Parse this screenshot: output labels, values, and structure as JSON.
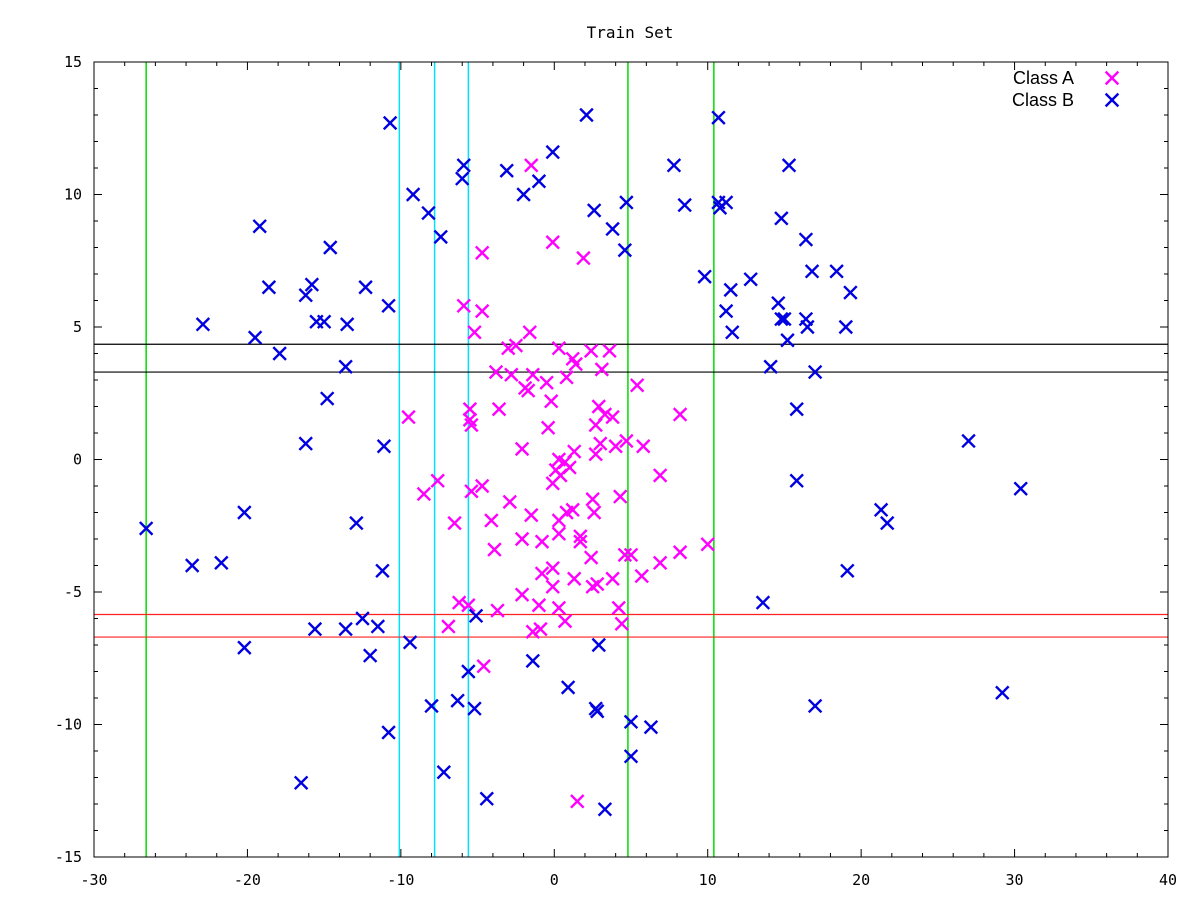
{
  "chart_data": {
    "type": "scatter",
    "title": "Train Set",
    "xlabel": "",
    "ylabel": "",
    "xlim": [
      -30,
      40
    ],
    "ylim": [
      -15,
      15
    ],
    "xticks": [
      -30,
      -20,
      -10,
      0,
      10,
      20,
      30,
      40
    ],
    "yticks": [
      -15,
      -10,
      -5,
      0,
      5,
      10,
      15
    ],
    "grid": false,
    "legend_position": "top-right",
    "series": [
      {
        "name": "Class A",
        "color": "#ff00ff",
        "marker": "x",
        "points": [
          [
            -1.5,
            11.1
          ],
          [
            -0.1,
            8.2
          ],
          [
            1.9,
            7.6
          ],
          [
            -4.7,
            7.8
          ],
          [
            -5.9,
            5.8
          ],
          [
            -4.7,
            5.6
          ],
          [
            -5.2,
            4.8
          ],
          [
            -1.6,
            4.8
          ],
          [
            -3.0,
            4.2
          ],
          [
            -2.5,
            4.3
          ],
          [
            0.3,
            4.2
          ],
          [
            2.4,
            4.1
          ],
          [
            3.6,
            4.1
          ],
          [
            1.2,
            3.8
          ],
          [
            1.4,
            3.6
          ],
          [
            -3.8,
            3.3
          ],
          [
            -2.8,
            3.2
          ],
          [
            -1.4,
            3.2
          ],
          [
            0.8,
            3.1
          ],
          [
            -0.5,
            2.9
          ],
          [
            3.1,
            3.4
          ],
          [
            -1.9,
            2.7
          ],
          [
            -1.7,
            2.6
          ],
          [
            5.4,
            2.8
          ],
          [
            -0.2,
            2.2
          ],
          [
            2.9,
            2.0
          ],
          [
            -3.6,
            1.9
          ],
          [
            -5.5,
            1.9
          ],
          [
            -5.5,
            1.5
          ],
          [
            -5.4,
            1.3
          ],
          [
            -9.5,
            1.6
          ],
          [
            3.3,
            1.7
          ],
          [
            3.8,
            1.6
          ],
          [
            2.7,
            1.3
          ],
          [
            -0.4,
            1.2
          ],
          [
            8.2,
            1.7
          ],
          [
            4.0,
            0.5
          ],
          [
            3.0,
            0.6
          ],
          [
            4.7,
            0.7
          ],
          [
            5.8,
            0.5
          ],
          [
            -2.1,
            0.4
          ],
          [
            1.3,
            0.3
          ],
          [
            2.7,
            0.2
          ],
          [
            0.3,
            0.0
          ],
          [
            0.7,
            -0.1
          ],
          [
            0.1,
            -0.4
          ],
          [
            1.0,
            -0.3
          ],
          [
            0.4,
            -0.6
          ],
          [
            -0.1,
            -0.9
          ],
          [
            6.9,
            -0.6
          ],
          [
            -7.6,
            -0.8
          ],
          [
            -4.7,
            -1.0
          ],
          [
            -5.4,
            -1.2
          ],
          [
            -8.5,
            -1.3
          ],
          [
            2.5,
            -1.5
          ],
          [
            4.3,
            -1.4
          ],
          [
            -2.9,
            -1.6
          ],
          [
            1.2,
            -1.9
          ],
          [
            0.8,
            -2.0
          ],
          [
            0.3,
            -2.3
          ],
          [
            2.6,
            -2.0
          ],
          [
            -6.5,
            -2.4
          ],
          [
            -1.5,
            -2.1
          ],
          [
            -4.1,
            -2.3
          ],
          [
            0.3,
            -2.8
          ],
          [
            1.7,
            -2.9
          ],
          [
            1.7,
            -3.1
          ],
          [
            -2.1,
            -3.0
          ],
          [
            -0.8,
            -3.1
          ],
          [
            2.4,
            -3.7
          ],
          [
            -3.9,
            -3.4
          ],
          [
            4.6,
            -3.6
          ],
          [
            5.0,
            -3.6
          ],
          [
            8.2,
            -3.5
          ],
          [
            10.0,
            -3.2
          ],
          [
            6.9,
            -3.9
          ],
          [
            -0.1,
            -4.1
          ],
          [
            -0.8,
            -4.3
          ],
          [
            1.3,
            -4.5
          ],
          [
            3.8,
            -4.5
          ],
          [
            5.7,
            -4.4
          ],
          [
            -0.1,
            -4.8
          ],
          [
            2.5,
            -4.8
          ],
          [
            2.8,
            -4.7
          ],
          [
            -2.1,
            -5.1
          ],
          [
            -3.7,
            -5.7
          ],
          [
            -6.2,
            -5.4
          ],
          [
            -5.6,
            -5.5
          ],
          [
            -1.0,
            -5.5
          ],
          [
            0.3,
            -5.6
          ],
          [
            4.2,
            -5.6
          ],
          [
            0.7,
            -6.1
          ],
          [
            4.4,
            -6.2
          ],
          [
            -6.9,
            -6.3
          ],
          [
            -1.4,
            -6.5
          ],
          [
            -0.9,
            -6.4
          ],
          [
            -4.6,
            -7.8
          ],
          [
            1.5,
            -12.9
          ]
        ]
      },
      {
        "name": "Class B",
        "color": "#0000e0",
        "marker": "x",
        "points": [
          [
            2.1,
            13.0
          ],
          [
            10.7,
            12.9
          ],
          [
            -10.7,
            12.7
          ],
          [
            -0.1,
            11.6
          ],
          [
            -5.9,
            11.1
          ],
          [
            15.3,
            11.1
          ],
          [
            -6.0,
            10.6
          ],
          [
            -3.1,
            10.9
          ],
          [
            -1.0,
            10.5
          ],
          [
            7.8,
            11.1
          ],
          [
            -9.2,
            10.0
          ],
          [
            -2.0,
            10.0
          ],
          [
            4.7,
            9.7
          ],
          [
            8.5,
            9.6
          ],
          [
            10.7,
            9.7
          ],
          [
            10.8,
            9.5
          ],
          [
            11.2,
            9.7
          ],
          [
            2.6,
            9.4
          ],
          [
            -8.2,
            9.3
          ],
          [
            14.8,
            9.1
          ],
          [
            -19.2,
            8.8
          ],
          [
            3.8,
            8.7
          ],
          [
            -7.4,
            8.4
          ],
          [
            -14.6,
            8.0
          ],
          [
            16.4,
            8.3
          ],
          [
            4.6,
            7.9
          ],
          [
            18.4,
            7.1
          ],
          [
            16.8,
            7.1
          ],
          [
            9.8,
            6.9
          ],
          [
            12.8,
            6.8
          ],
          [
            -18.6,
            6.5
          ],
          [
            -15.8,
            6.6
          ],
          [
            -12.3,
            6.5
          ],
          [
            -16.2,
            6.2
          ],
          [
            11.5,
            6.4
          ],
          [
            19.3,
            6.3
          ],
          [
            14.6,
            5.9
          ],
          [
            -10.8,
            5.8
          ],
          [
            11.2,
            5.6
          ],
          [
            -22.9,
            5.1
          ],
          [
            -15.5,
            5.2
          ],
          [
            -15.0,
            5.2
          ],
          [
            -13.5,
            5.1
          ],
          [
            14.8,
            5.3
          ],
          [
            15.0,
            5.3
          ],
          [
            16.4,
            5.3
          ],
          [
            16.5,
            5.0
          ],
          [
            19.0,
            5.0
          ],
          [
            -19.5,
            4.6
          ],
          [
            11.6,
            4.8
          ],
          [
            15.2,
            4.5
          ],
          [
            -17.9,
            4.0
          ],
          [
            -13.6,
            3.5
          ],
          [
            14.1,
            3.5
          ],
          [
            17.0,
            3.3
          ],
          [
            -14.8,
            2.3
          ],
          [
            15.8,
            1.9
          ],
          [
            -16.2,
            0.6
          ],
          [
            -11.1,
            0.5
          ],
          [
            27.0,
            0.7
          ],
          [
            15.8,
            -0.8
          ],
          [
            30.4,
            -1.1
          ],
          [
            -26.6,
            -2.6
          ],
          [
            -20.2,
            -2.0
          ],
          [
            -12.9,
            -2.4
          ],
          [
            21.3,
            -1.9
          ],
          [
            21.7,
            -2.4
          ],
          [
            -23.6,
            -4.0
          ],
          [
            -21.7,
            -3.9
          ],
          [
            -11.2,
            -4.2
          ],
          [
            19.1,
            -4.2
          ],
          [
            13.6,
            -5.4
          ],
          [
            -5.1,
            -5.9
          ],
          [
            -12.5,
            -6.0
          ],
          [
            -15.6,
            -6.4
          ],
          [
            -13.6,
            -6.4
          ],
          [
            -11.5,
            -6.3
          ],
          [
            -20.2,
            -7.1
          ],
          [
            -12.0,
            -7.4
          ],
          [
            -9.4,
            -6.9
          ],
          [
            2.9,
            -7.0
          ],
          [
            -5.6,
            -8.0
          ],
          [
            -1.4,
            -7.6
          ],
          [
            0.9,
            -8.6
          ],
          [
            29.2,
            -8.8
          ],
          [
            -8.0,
            -9.3
          ],
          [
            -6.3,
            -9.1
          ],
          [
            -5.2,
            -9.4
          ],
          [
            2.7,
            -9.4
          ],
          [
            2.8,
            -9.5
          ],
          [
            17.0,
            -9.3
          ],
          [
            5.0,
            -9.9
          ],
          [
            6.3,
            -10.1
          ],
          [
            -10.8,
            -10.3
          ],
          [
            5.0,
            -11.2
          ],
          [
            -7.2,
            -11.8
          ],
          [
            -16.5,
            -12.2
          ],
          [
            -4.4,
            -12.8
          ],
          [
            3.3,
            -13.2
          ]
        ]
      }
    ],
    "vertical_lines": [
      {
        "x": -26.6,
        "color": "#00dd00"
      },
      {
        "x": -10.1,
        "color": "#00e0ff"
      },
      {
        "x": -7.8,
        "color": "#00e0ff"
      },
      {
        "x": -5.6,
        "color": "#00e0ff"
      },
      {
        "x": 4.8,
        "color": "#00dd00"
      },
      {
        "x": 10.4,
        "color": "#00dd00"
      }
    ],
    "horizontal_lines": [
      {
        "y": 4.35,
        "color": "#000000"
      },
      {
        "y": 3.3,
        "color": "#000000"
      },
      {
        "y": -5.85,
        "color": "#ff2020"
      },
      {
        "y": -6.7,
        "color": "#ff2020"
      }
    ]
  }
}
